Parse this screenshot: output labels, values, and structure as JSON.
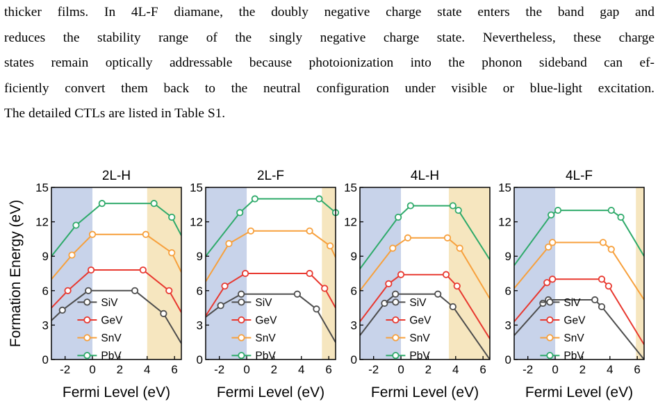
{
  "paragraph": {
    "lines": [
      "thicker films. In 4L-F diamane, the doubly negative charge state enters the band gap and",
      "reduces the stability range of the singly negative charge state. Nevertheless, these charge",
      "states remain optically addressable because photoionization into the phonon sideband can ef-",
      "ficiently convert them back to the neutral configuration under visible or blue-light excitation.",
      "The detailed CTLs are listed in Table S1."
    ]
  },
  "figure": {
    "ylabel": "Formation Energy (eV)",
    "colors": {
      "SiV": "#4d4d4d",
      "GeV": "#e8382f",
      "SnV": "#f7a03c",
      "PbV": "#2eaa6a",
      "vbm_shade": "#c8d3ea",
      "cbm_shade": "#f6e6bf"
    }
  },
  "chart_data": [
    {
      "type": "line",
      "title": "2L-H",
      "xlabel": "Fermi Level (eV)",
      "ylabel": "Formation Energy (eV)",
      "xlim": [
        -3,
        6.5
      ],
      "ylim": [
        0,
        15
      ],
      "xticks": [
        -2,
        0,
        2,
        4,
        6
      ],
      "yticks": [
        0,
        3,
        6,
        9,
        12,
        15
      ],
      "xtick_labels": [
        "-2",
        "0",
        "2",
        "4",
        "6"
      ],
      "ytick_labels": [
        "0",
        "3",
        "6",
        "9",
        "12",
        "15"
      ],
      "shade_left": [
        -3,
        0
      ],
      "shade_right": [
        4,
        6.5
      ],
      "legend": "lower-center",
      "series": [
        {
          "name": "SiV",
          "x": [
            -3,
            -2.2,
            -0.3,
            3.1,
            5.2,
            6.5
          ],
          "y": [
            3.4,
            4.3,
            6.0,
            6.0,
            4.0,
            1.4
          ],
          "markers": [
            [
              -2.2,
              4.3
            ],
            [
              -0.3,
              6.0
            ],
            [
              3.1,
              6.0
            ],
            [
              5.2,
              4.0
            ]
          ]
        },
        {
          "name": "GeV",
          "x": [
            -3,
            -1.8,
            -0.1,
            3.7,
            5.6,
            6.5
          ],
          "y": [
            4.5,
            6.0,
            7.8,
            7.8,
            6.0,
            4.1
          ],
          "markers": [
            [
              -1.8,
              6.0
            ],
            [
              -0.1,
              7.8
            ],
            [
              3.7,
              7.8
            ],
            [
              5.6,
              6.0
            ]
          ]
        },
        {
          "name": "SnV",
          "x": [
            -3,
            -1.5,
            0.0,
            3.9,
            5.8,
            6.5
          ],
          "y": [
            7.0,
            9.1,
            10.9,
            10.9,
            9.3,
            7.6
          ],
          "markers": [
            [
              -1.5,
              9.1
            ],
            [
              0.0,
              10.9
            ],
            [
              3.9,
              10.9
            ],
            [
              5.8,
              9.3
            ]
          ]
        },
        {
          "name": "PbV",
          "x": [
            -3,
            -1.2,
            0.7,
            4.5,
            5.8,
            6.5
          ],
          "y": [
            9.0,
            11.7,
            13.6,
            13.6,
            12.4,
            10.8
          ],
          "markers": [
            [
              -1.2,
              11.7
            ],
            [
              0.7,
              13.6
            ],
            [
              4.5,
              13.6
            ],
            [
              5.8,
              12.4
            ]
          ]
        }
      ]
    },
    {
      "type": "line",
      "title": "2L-F",
      "xlabel": "Fermi Level (eV)",
      "ylabel": "",
      "xlim": [
        -3,
        6.5
      ],
      "ylim": [
        0,
        15
      ],
      "xticks": [
        -2,
        0,
        2,
        4,
        6
      ],
      "yticks": [
        0,
        3,
        6,
        9,
        12,
        15
      ],
      "xtick_labels": [
        "-2",
        "0",
        "2",
        "4",
        "6"
      ],
      "ytick_labels": [
        "0",
        "3",
        "6",
        "9",
        "12",
        "15"
      ],
      "shade_left": [
        -3,
        0
      ],
      "shade_right": [
        5.5,
        6.5
      ],
      "legend": "lower-center",
      "series": [
        {
          "name": "SiV",
          "x": [
            -3,
            -1.9,
            -0.4,
            3.7,
            5.1,
            6.5
          ],
          "y": [
            3.7,
            4.7,
            5.7,
            5.7,
            4.4,
            1.5
          ],
          "markers": [
            [
              -1.9,
              4.7
            ],
            [
              -0.4,
              5.7
            ],
            [
              3.7,
              5.7
            ],
            [
              5.1,
              4.4
            ]
          ]
        },
        {
          "name": "GeV",
          "x": [
            -3,
            -1.6,
            -0.1,
            4.6,
            5.7,
            6.5
          ],
          "y": [
            3.8,
            6.4,
            7.5,
            7.5,
            6.2,
            4.5
          ],
          "markers": [
            [
              -1.6,
              6.4
            ],
            [
              -0.1,
              7.5
            ],
            [
              4.6,
              7.5
            ],
            [
              5.7,
              6.2
            ]
          ]
        },
        {
          "name": "SnV",
          "x": [
            -3,
            -1.3,
            0.3,
            4.6,
            6.1,
            6.5
          ],
          "y": [
            6.8,
            10.1,
            11.2,
            11.2,
            9.9,
            8.9
          ],
          "markers": [
            [
              -1.3,
              10.1
            ],
            [
              0.3,
              11.2
            ],
            [
              4.6,
              11.2
            ],
            [
              6.1,
              9.9
            ]
          ]
        },
        {
          "name": "PbV",
          "x": [
            -3,
            -0.5,
            0.6,
            5.3,
            6.5
          ],
          "y": [
            9.0,
            12.8,
            14.0,
            14.0,
            12.8
          ],
          "markers": [
            [
              -0.5,
              12.8
            ],
            [
              0.6,
              14.0
            ],
            [
              5.3,
              14.0
            ],
            [
              6.5,
              12.8
            ]
          ]
        }
      ]
    },
    {
      "type": "line",
      "title": "4L-H",
      "xlabel": "Fermi Level (eV)",
      "ylabel": "",
      "xlim": [
        -3,
        6.5
      ],
      "ylim": [
        0,
        15
      ],
      "xticks": [
        -2,
        0,
        2,
        4,
        6
      ],
      "yticks": [
        0,
        3,
        6,
        9,
        12,
        15
      ],
      "xtick_labels": [
        "-2",
        "0",
        "2",
        "4",
        "6"
      ],
      "ytick_labels": [
        "0",
        "3",
        "6",
        "9",
        "12",
        "15"
      ],
      "shade_left": [
        -3,
        0
      ],
      "shade_right": [
        3.5,
        6.5
      ],
      "legend": "lower-center",
      "series": [
        {
          "name": "SiV",
          "x": [
            -3,
            -1.2,
            -0.4,
            2.7,
            3.8,
            6.5
          ],
          "y": [
            2.1,
            4.9,
            5.7,
            5.7,
            4.6,
            0.0
          ],
          "markers": [
            [
              -1.2,
              4.9
            ],
            [
              -0.4,
              5.7
            ],
            [
              2.7,
              5.7
            ],
            [
              3.8,
              4.6
            ]
          ]
        },
        {
          "name": "GeV",
          "x": [
            -3,
            -0.9,
            0.0,
            3.3,
            4.1,
            6.5
          ],
          "y": [
            3.3,
            6.6,
            7.4,
            7.4,
            6.4,
            1.8
          ],
          "markers": [
            [
              -0.9,
              6.6
            ],
            [
              0.0,
              7.4
            ],
            [
              3.3,
              7.4
            ],
            [
              4.1,
              6.4
            ]
          ]
        },
        {
          "name": "SnV",
          "x": [
            -3,
            -0.6,
            0.5,
            3.4,
            4.3,
            6.5
          ],
          "y": [
            6.0,
            9.7,
            10.6,
            10.6,
            9.7,
            5.3
          ],
          "markers": [
            [
              -0.6,
              9.7
            ],
            [
              0.5,
              10.6
            ],
            [
              3.4,
              10.6
            ],
            [
              4.3,
              9.7
            ]
          ]
        },
        {
          "name": "PbV",
          "x": [
            -3,
            -0.2,
            0.7,
            3.8,
            4.2,
            6.5
          ],
          "y": [
            7.9,
            12.4,
            13.4,
            13.4,
            13.0,
            8.7
          ],
          "markers": [
            [
              -0.2,
              12.4
            ],
            [
              0.7,
              13.4
            ],
            [
              3.8,
              13.4
            ],
            [
              4.2,
              13.0
            ]
          ]
        }
      ]
    },
    {
      "type": "line",
      "title": "4L-F",
      "xlabel": "Fermi Level (eV)",
      "ylabel": "",
      "xlim": [
        -3,
        6.5
      ],
      "ylim": [
        0,
        15
      ],
      "xticks": [
        -2,
        0,
        2,
        4,
        6
      ],
      "yticks": [
        0,
        3,
        6,
        9,
        12,
        15
      ],
      "xtick_labels": [
        "-2",
        "0",
        "2",
        "4",
        "6"
      ],
      "ytick_labels": [
        "0",
        "3",
        "6",
        "9",
        "12",
        "15"
      ],
      "shade_left": [
        -3,
        0
      ],
      "shade_right": [
        5.9,
        6.5
      ],
      "legend": "lower-center",
      "series": [
        {
          "name": "SiV",
          "x": [
            -3,
            -0.9,
            -0.5,
            2.9,
            3.4,
            6.5
          ],
          "y": [
            2.1,
            4.9,
            5.2,
            5.2,
            4.6,
            0.0
          ],
          "markers": [
            [
              -0.9,
              4.9
            ],
            [
              -0.5,
              5.2
            ],
            [
              2.9,
              5.2
            ],
            [
              3.4,
              4.6
            ]
          ]
        },
        {
          "name": "GeV",
          "x": [
            -3,
            -0.6,
            -0.2,
            3.4,
            3.9,
            6.5
          ],
          "y": [
            3.3,
            6.7,
            7.0,
            7.0,
            6.4,
            1.3
          ],
          "markers": [
            [
              -0.6,
              6.7
            ],
            [
              -0.2,
              7.0
            ],
            [
              3.4,
              7.0
            ],
            [
              3.9,
              6.4
            ]
          ]
        },
        {
          "name": "SnV",
          "x": [
            -3,
            -0.5,
            -0.2,
            3.5,
            4.1,
            6.5
          ],
          "y": [
            6.2,
            9.8,
            10.2,
            10.2,
            9.6,
            5.2
          ],
          "markers": [
            [
              -0.5,
              9.8
            ],
            [
              -0.2,
              10.2
            ],
            [
              3.5,
              10.2
            ],
            [
              4.1,
              9.6
            ]
          ]
        },
        {
          "name": "PbV",
          "x": [
            -3,
            -0.3,
            0.2,
            4.1,
            4.8,
            6.5
          ],
          "y": [
            8.2,
            12.6,
            13.0,
            13.0,
            12.4,
            9.0
          ],
          "markers": [
            [
              -0.3,
              12.6
            ],
            [
              0.2,
              13.0
            ],
            [
              4.1,
              13.0
            ],
            [
              4.8,
              12.4
            ]
          ]
        }
      ]
    }
  ]
}
